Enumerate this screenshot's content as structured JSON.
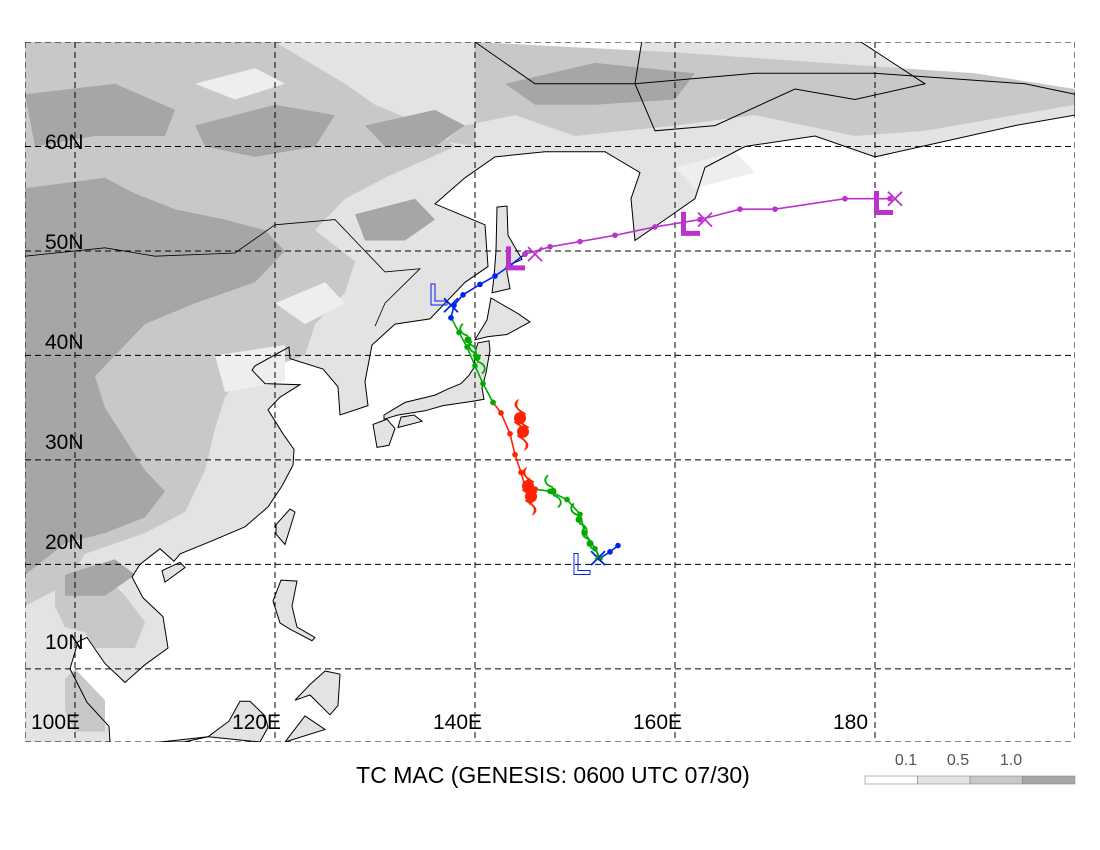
{
  "map": {
    "title": "TC MAC (GENESIS: 0600 UTC 07/30)",
    "lat_labels": [
      "60N",
      "50N",
      "40N",
      "30N",
      "20N",
      "10N"
    ],
    "lon_labels": [
      "100E",
      "120E",
      "140E",
      "160E",
      "180"
    ],
    "lon_range": [
      95,
      200
    ],
    "lat_range": [
      3,
      70
    ],
    "grid": true,
    "colors": {
      "ocean": "#ffffff",
      "land_light": "#e3e3e3",
      "land_mid": "#c8c8c8",
      "land_dark": "#a6a6a6",
      "coast": "#000000"
    }
  },
  "legend": {
    "labels": [
      "0.1",
      "0.5",
      "1.0"
    ],
    "colors": [
      "#ffffff",
      "#e3e3e3",
      "#c8c8c8",
      "#a6a6a6"
    ]
  },
  "track": {
    "segments": [
      {
        "color": "#0022ee",
        "points": [
          [
            154.3,
            21.8
          ],
          [
            153.5,
            21.2
          ],
          [
            152.5,
            20.6
          ]
        ]
      },
      {
        "color": "#00aa00",
        "points": [
          [
            152.5,
            20.6
          ],
          [
            152.0,
            21.5
          ],
          [
            151.0,
            23.0
          ],
          [
            150.5,
            24.8
          ],
          [
            149.2,
            26.2
          ],
          [
            147.5,
            27.0
          ],
          [
            146.0,
            27.2
          ]
        ]
      },
      {
        "color": "#ff2200",
        "points": [
          [
            146.0,
            27.2
          ],
          [
            145.0,
            27.5
          ],
          [
            144.6,
            28.8
          ],
          [
            144.0,
            30.5
          ],
          [
            143.5,
            32.5
          ],
          [
            142.6,
            34.5
          ],
          [
            141.8,
            35.5
          ]
        ]
      },
      {
        "color": "#00aa00",
        "points": [
          [
            141.8,
            35.5
          ],
          [
            140.8,
            37.3
          ],
          [
            140.0,
            39.0
          ],
          [
            139.2,
            40.8
          ],
          [
            138.4,
            42.2
          ],
          [
            137.6,
            43.6
          ]
        ]
      },
      {
        "color": "#0022ee",
        "points": [
          [
            137.6,
            43.6
          ],
          [
            137.9,
            44.8
          ],
          [
            138.8,
            45.8
          ],
          [
            140.5,
            46.8
          ],
          [
            142.0,
            47.6
          ],
          [
            143.5,
            48.6
          ],
          [
            145.0,
            49.7
          ]
        ]
      },
      {
        "color": "#bb33cc",
        "points": [
          [
            145.0,
            49.7
          ],
          [
            147.5,
            50.4
          ],
          [
            150.5,
            50.9
          ],
          [
            154.0,
            51.5
          ],
          [
            158.0,
            52.3
          ],
          [
            162.5,
            53.0
          ],
          [
            166.5,
            54.0
          ],
          [
            170.0,
            54.0
          ],
          [
            177.0,
            55.0
          ],
          [
            181.5,
            55.0
          ]
        ]
      }
    ],
    "markers": [
      {
        "type": "x-start",
        "color": "#0022ee",
        "lon": 152.3,
        "lat": 20.6
      },
      {
        "type": "x",
        "color": "#0022ee",
        "lon": 137.6,
        "lat": 44.8
      },
      {
        "type": "x",
        "color": "#bb33cc",
        "lon": 146.0,
        "lat": 49.7
      },
      {
        "type": "x",
        "color": "#bb33cc",
        "lon": 163.0,
        "lat": 53.0
      },
      {
        "type": "x",
        "color": "#bb33cc",
        "lon": 182.0,
        "lat": 55.0
      },
      {
        "type": "L",
        "color": "#bb33cc",
        "lon": 144.0,
        "lat": 49.0
      },
      {
        "type": "L",
        "color": "#bb33cc",
        "lon": 161.5,
        "lat": 52.3
      },
      {
        "type": "L",
        "color": "#bb33cc",
        "lon": 180.8,
        "lat": 54.3
      },
      {
        "type": "L-open",
        "color": "#0022ee",
        "lon": 136.2,
        "lat": 45.5
      },
      {
        "type": "L-open",
        "color": "#0022ee",
        "lon": 150.5,
        "lat": 19.7
      },
      {
        "type": "ts",
        "color": "#00aa00",
        "lon": 151.5,
        "lat": 22.0
      },
      {
        "type": "ts",
        "color": "#00aa00",
        "lon": 150.4,
        "lat": 24.3
      },
      {
        "type": "ts",
        "color": "#00aa00",
        "lon": 147.8,
        "lat": 27.0
      },
      {
        "type": "ty",
        "color": "#ff2200",
        "lon": 145.3,
        "lat": 27.5
      },
      {
        "type": "ty",
        "color": "#ff2200",
        "lon": 145.6,
        "lat": 26.5
      },
      {
        "type": "ty",
        "color": "#ff2200",
        "lon": 144.5,
        "lat": 34.0
      },
      {
        "type": "ty",
        "color": "#ff2200",
        "lon": 144.8,
        "lat": 32.7
      },
      {
        "type": "ts",
        "color": "#00aa00",
        "lon": 139.3,
        "lat": 41.5
      },
      {
        "type": "ts",
        "color": "#00aa00",
        "lon": 140.2,
        "lat": 39.8
      }
    ]
  }
}
